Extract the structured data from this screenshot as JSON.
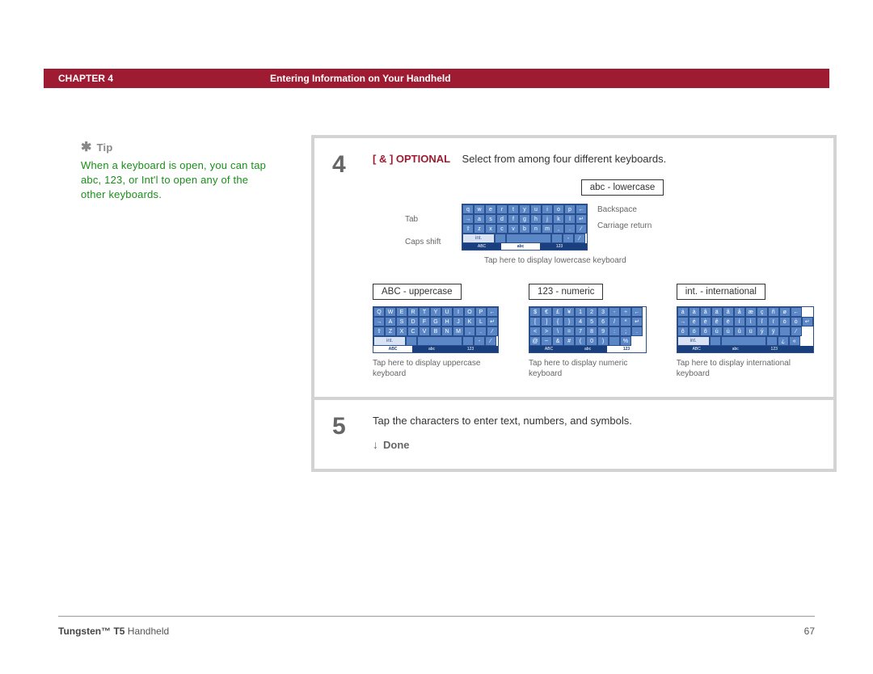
{
  "header": {
    "chapter": "CHAPTER 4",
    "title": "Entering Information on Your Handheld",
    "bar_color": "#9e1b32"
  },
  "tip": {
    "label": "Tip",
    "icon": "✱",
    "text": "When a keyboard is open, you can tap abc, 123, or Int'l to open any of the other keyboards.",
    "text_color": "#1a8f1a",
    "label_color": "#888888"
  },
  "steps": [
    {
      "num": "4",
      "optional_tag": "[ & ] OPTIONAL",
      "text": "Select from among four different keyboards."
    },
    {
      "num": "5",
      "text": "Tap the characters to enter text, numbers, and symbols.",
      "done": "Done",
      "done_icon": "↓"
    }
  ],
  "keyboards": {
    "main": {
      "label": "abc - lowercase",
      "rows": [
        [
          "q",
          "w",
          "e",
          "r",
          "t",
          "y",
          "u",
          "i",
          "o",
          "p",
          "←"
        ],
        [
          "→",
          "a",
          "s",
          "d",
          "f",
          "g",
          "h",
          "j",
          "k",
          "l",
          "↵"
        ],
        [
          "⇧",
          "z",
          "x",
          "c",
          "v",
          "b",
          "n",
          "m",
          ",",
          ".",
          "⁄"
        ],
        [
          "int.",
          "",
          "space",
          "",
          "-",
          "⁄"
        ]
      ],
      "tabs": [
        "ABC",
        "abc",
        "123"
      ],
      "active_tab": "abc",
      "annotations": {
        "tab": "Tab",
        "caps": "Caps shift",
        "backspace": "Backspace",
        "carriage": "Carriage return",
        "caption": "Tap here to display lowercase keyboard"
      }
    },
    "upper": {
      "label": "ABC - uppercase",
      "rows": [
        [
          "Q",
          "W",
          "E",
          "R",
          "T",
          "Y",
          "U",
          "I",
          "O",
          "P",
          "←"
        ],
        [
          "→",
          "A",
          "S",
          "D",
          "F",
          "G",
          "H",
          "J",
          "K",
          "L",
          "↵"
        ],
        [
          "⇧",
          "Z",
          "X",
          "C",
          "V",
          "B",
          "N",
          "M",
          ",",
          ".",
          "⁄"
        ],
        [
          "int.",
          "",
          "space",
          "",
          "-",
          "⁄"
        ]
      ],
      "tabs": [
        "ABC",
        "abc",
        "123"
      ],
      "active_tab": "ABC",
      "caption": "Tap here to display uppercase keyboard"
    },
    "numeric": {
      "label": "123 - numeric",
      "rows": [
        [
          "$",
          "€",
          "£",
          "¥",
          "1",
          "2",
          "3",
          "-",
          "÷",
          "←"
        ],
        [
          "[",
          "]",
          "{",
          "}",
          "4",
          "5",
          "6",
          "/",
          "*",
          "↵"
        ],
        [
          "<",
          ">",
          "\\",
          "=",
          "7",
          "8",
          "9",
          ":",
          ";",
          "."
        ],
        [
          "@",
          "~",
          "&",
          "#",
          "(",
          "0",
          ")",
          "",
          "%"
        ]
      ],
      "tabs": [
        "ABC",
        "abc",
        "123"
      ],
      "active_tab": "123",
      "caption": "Tap here to display numeric keyboard"
    },
    "intl": {
      "label": "int. - international",
      "rows": [
        [
          "á",
          "à",
          "â",
          "ä",
          "ã",
          "å",
          "æ",
          "ç",
          "ñ",
          "ø",
          "←"
        ],
        [
          "→",
          "é",
          "è",
          "ê",
          "ë",
          "í",
          "ì",
          "î",
          "ï",
          "ó",
          "ò",
          "↵"
        ],
        [
          "ô",
          "ö",
          "õ",
          "ú",
          "ù",
          "û",
          "ü",
          "ý",
          "ÿ",
          "",
          "⁄"
        ],
        [
          "int.",
          "",
          "space",
          "",
          "¿",
          "«"
        ]
      ],
      "tabs": [
        "ABC",
        "abc",
        "123"
      ],
      "active_tab": "",
      "caption": "Tap here to display international keyboard"
    },
    "colors": {
      "key_bg": "#5b87c7",
      "key_border": "#2a4f8f",
      "mode_bg": "#d9e3f3",
      "tab_bar": "#1a3f7f"
    }
  },
  "footer": {
    "product_bold": "Tungsten™ T5",
    "product_rest": " Handheld",
    "page": "67"
  }
}
